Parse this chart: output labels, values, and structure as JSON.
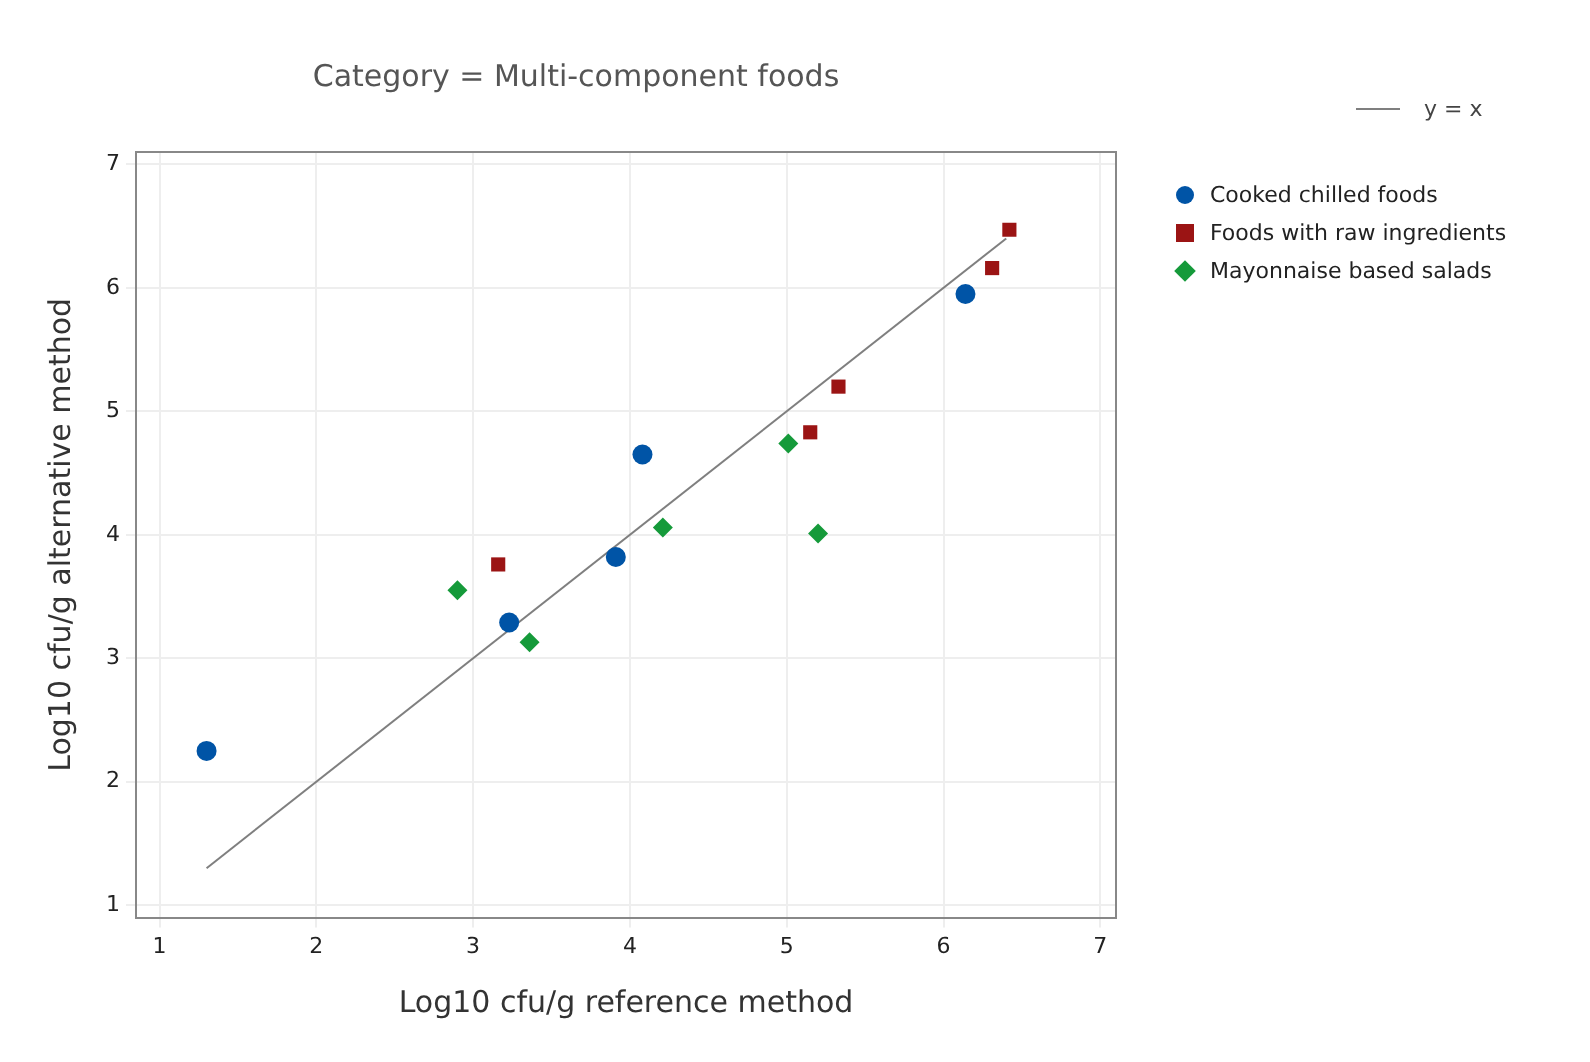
{
  "chart_data": {
    "type": "scatter",
    "title": "Category = Multi-component foods",
    "xlabel": "Log10 cfu/g reference method",
    "ylabel": "Log10 cfu/g alternative method",
    "series": [
      {
        "name": "Cooked chilled foods",
        "color": "#0054a6",
        "marker": "circle",
        "x": [
          1.3,
          3.23,
          3.91,
          4.08,
          6.14
        ],
        "values": [
          2.25,
          3.29,
          3.82,
          4.65,
          5.95
        ]
      },
      {
        "name": "Foods with raw ingredients",
        "color": "#9b1414",
        "marker": "square",
        "x": [
          3.16,
          5.15,
          5.33,
          6.31,
          6.42
        ],
        "values": [
          3.76,
          4.83,
          5.2,
          6.16,
          6.47
        ]
      },
      {
        "name": "Mayonnaise based salads",
        "color": "#159a3a",
        "marker": "diamond",
        "x": [
          2.9,
          3.36,
          4.21,
          5.01,
          5.2
        ],
        "values": [
          3.55,
          3.13,
          4.06,
          4.74,
          4.01
        ]
      },
      {
        "name": "y = x",
        "type": "line",
        "color": "#7f7f7f",
        "marker": "none",
        "x": [
          1.3,
          6.4
        ],
        "values": [
          1.3,
          6.4
        ]
      }
    ],
    "xlim": [
      0.85,
      7.1
    ],
    "ylim": [
      0.9,
      7.1
    ],
    "xticks": [
      1,
      2,
      3,
      4,
      5,
      6,
      7
    ],
    "yticks": [
      1,
      2,
      3,
      4,
      5,
      6,
      7
    ],
    "grid": true,
    "legend": "right"
  }
}
